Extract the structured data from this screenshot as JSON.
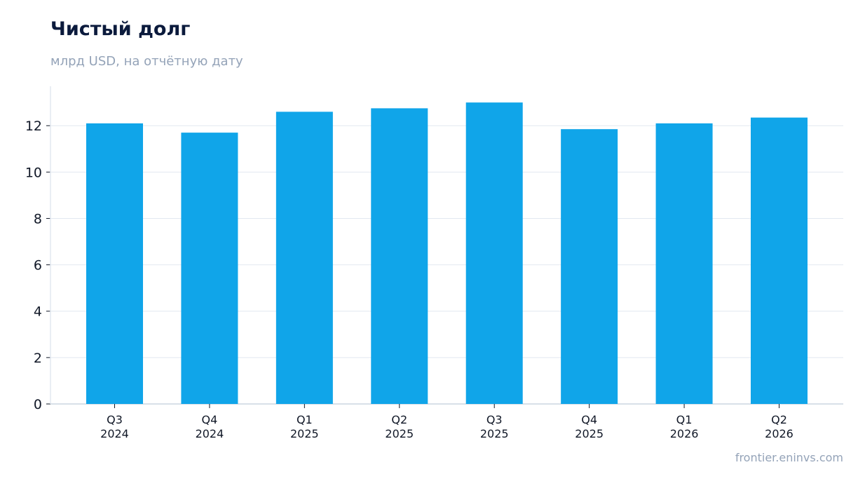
{
  "title": "Чистый долг",
  "subtitle": "млрд USD, на отчётную дату",
  "source": "frontier.eninvs.com",
  "colors": {
    "bar": "#10a5e9",
    "grid": "#e2e8f0",
    "axis": "#cbd5e1",
    "tick_text": "#111827"
  },
  "chart_data": {
    "type": "bar",
    "categories": [
      [
        "Q3",
        "2024"
      ],
      [
        "Q4",
        "2024"
      ],
      [
        "Q1",
        "2025"
      ],
      [
        "Q2",
        "2025"
      ],
      [
        "Q3",
        "2025"
      ],
      [
        "Q4",
        "2025"
      ],
      [
        "Q1",
        "2026"
      ],
      [
        "Q2",
        "2026"
      ]
    ],
    "values": [
      12.1,
      11.7,
      12.6,
      12.75,
      13.0,
      11.85,
      12.1,
      12.35
    ],
    "ylim": [
      0,
      13.7
    ],
    "yticks": [
      0,
      2,
      4,
      6,
      8,
      10,
      12
    ],
    "grid": true,
    "legend": "none"
  }
}
